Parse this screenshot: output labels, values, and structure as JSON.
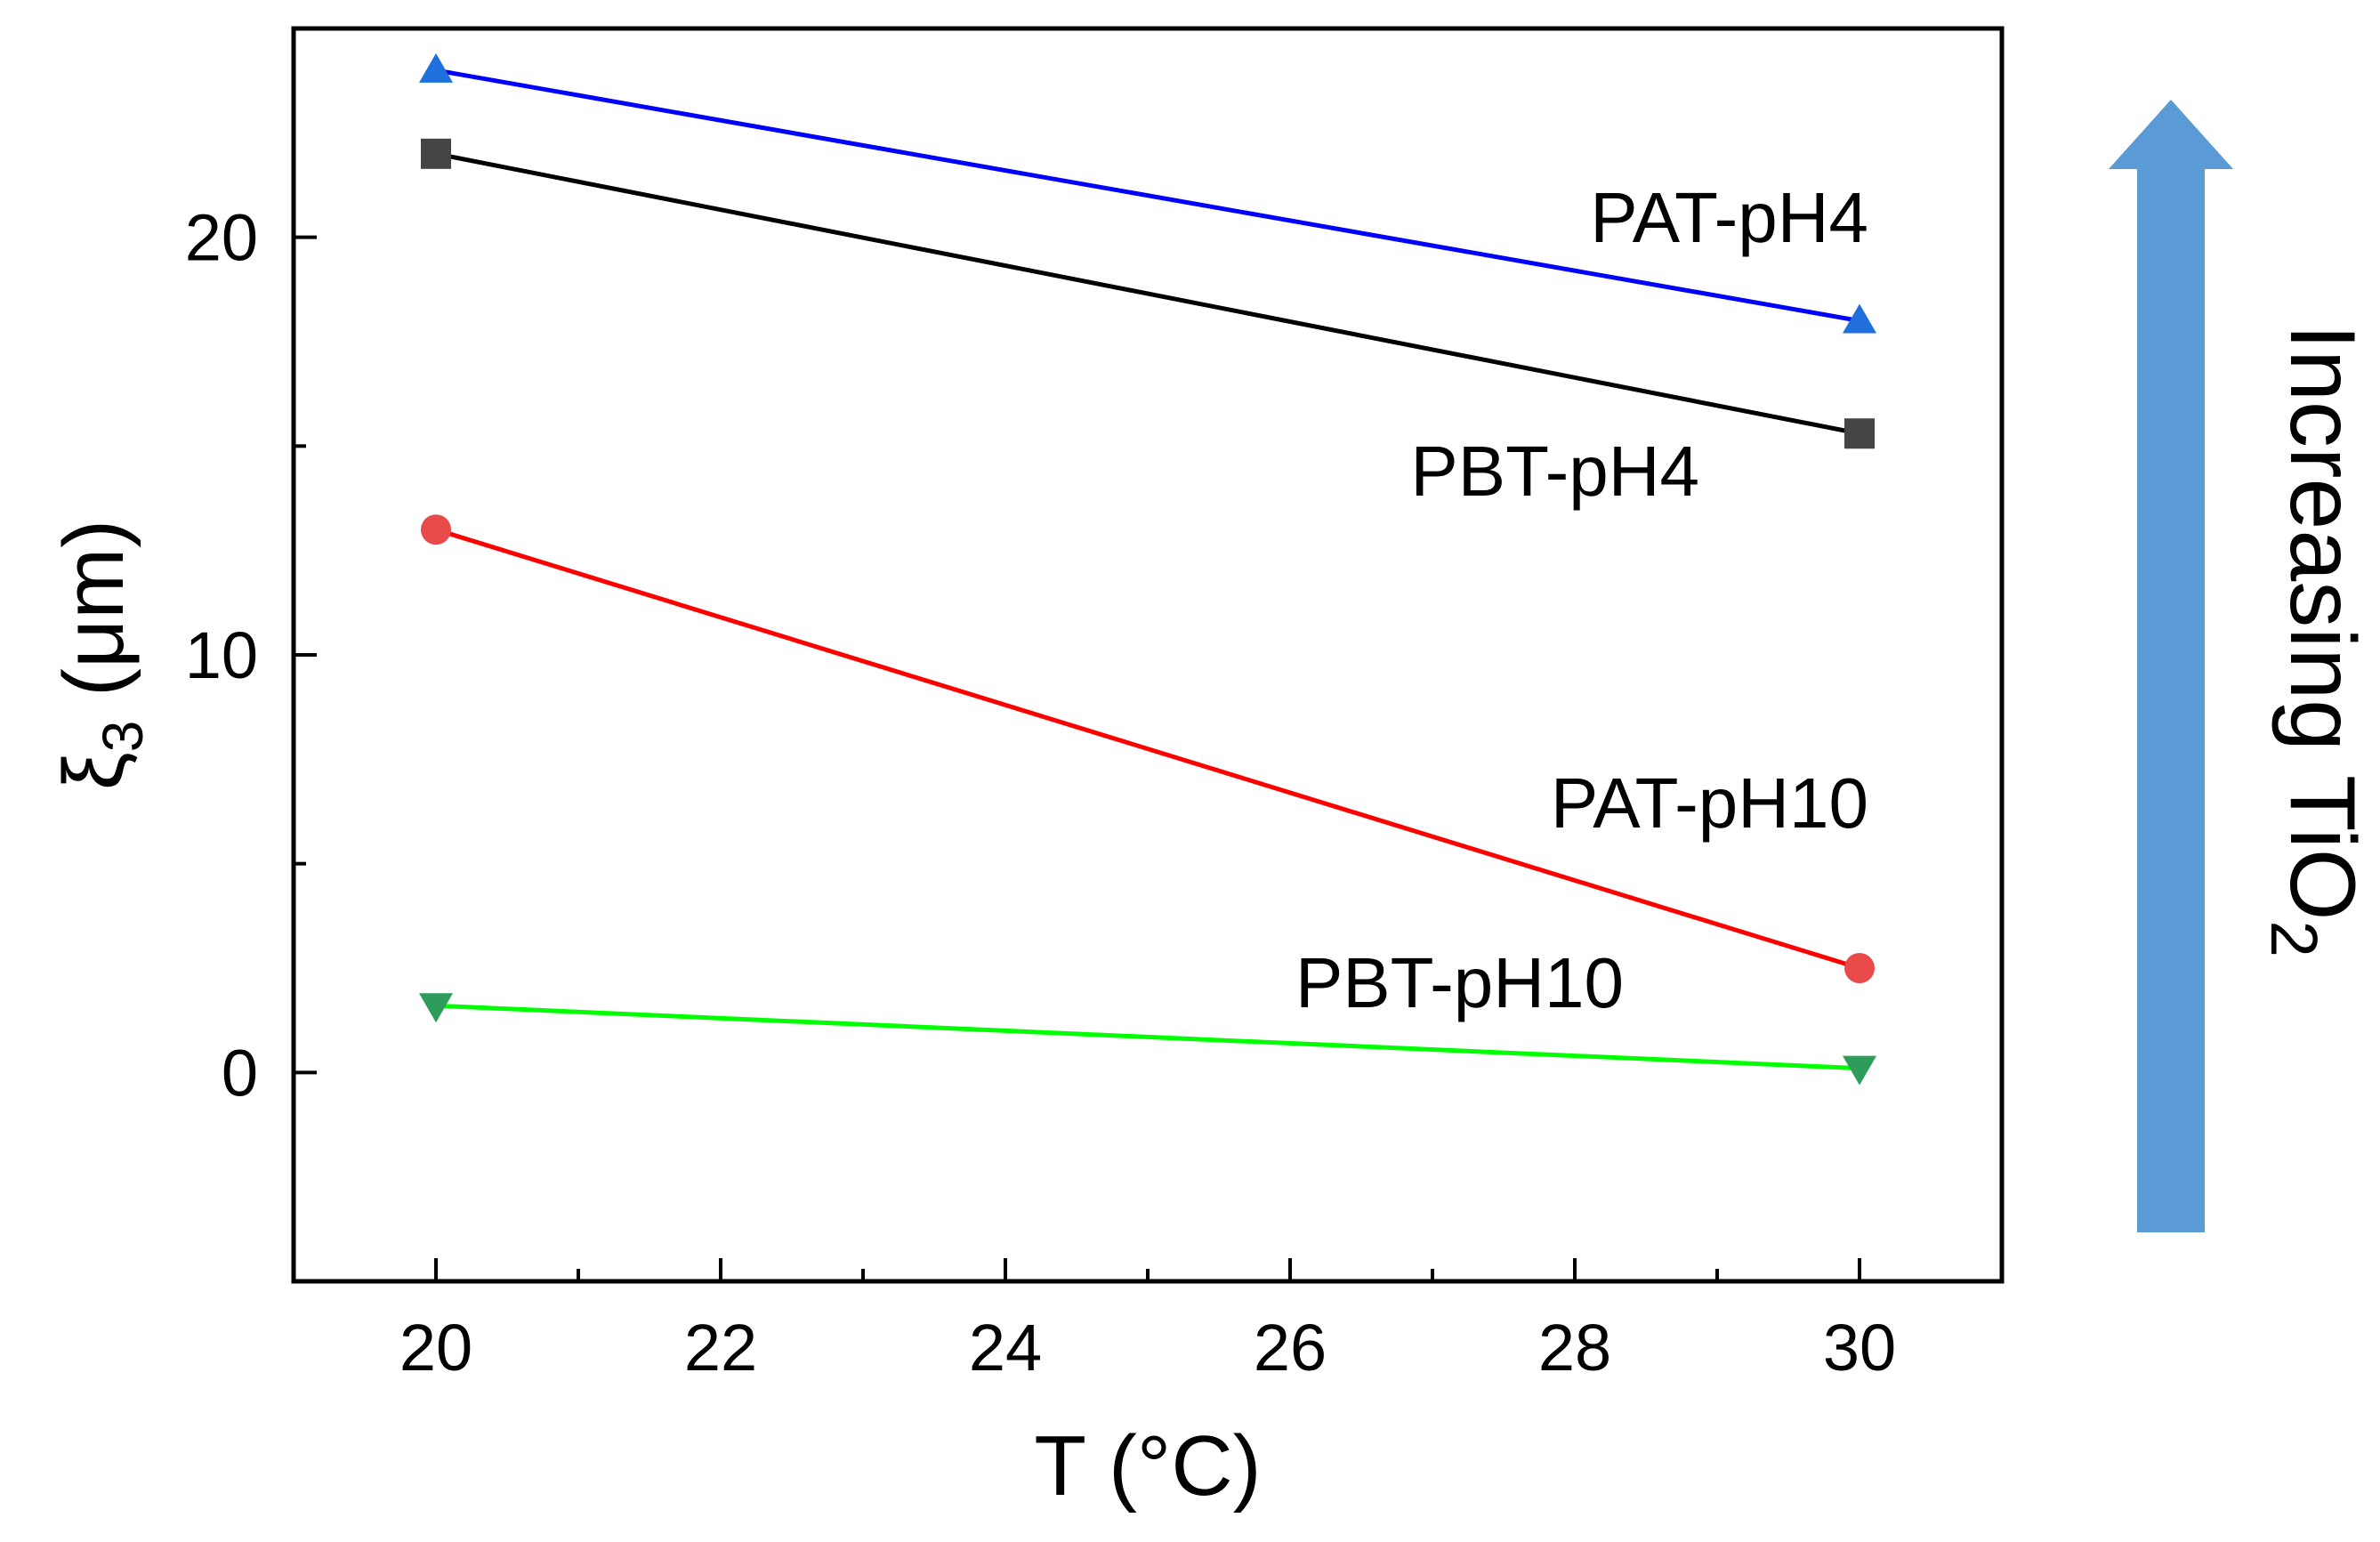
{
  "chart_data": {
    "type": "line",
    "title": "",
    "xlabel": "T (°C)",
    "ylabel": {
      "main": "ξ",
      "sub": "3",
      "unit": " (μm)"
    },
    "xlim": [
      19,
      31
    ],
    "ylim": [
      -5,
      25
    ],
    "xticks": [
      20,
      22,
      24,
      26,
      28,
      30
    ],
    "yticks": [
      0,
      10,
      20
    ],
    "grid": false,
    "legend": "none",
    "series": [
      {
        "name": "PAT-pH4",
        "x": [
          20,
          30
        ],
        "y": [
          24.0,
          18.0
        ],
        "line_color": "#0000ff",
        "marker_color": "#1f6fdc",
        "marker": "triangle-up"
      },
      {
        "name": "PBT-pH4",
        "x": [
          20,
          30
        ],
        "y": [
          22.0,
          15.3
        ],
        "line_color": "#000000",
        "marker_color": "#444444",
        "marker": "square"
      },
      {
        "name": "PAT-pH10",
        "x": [
          20,
          30
        ],
        "y": [
          13.0,
          2.5
        ],
        "line_color": "#ff0000",
        "marker_color": "#e84a4a",
        "marker": "circle"
      },
      {
        "name": "PBT-pH10",
        "x": [
          20,
          30
        ],
        "y": [
          1.6,
          0.1
        ],
        "line_color": "#00ff00",
        "marker_color": "#2e9c5a",
        "marker": "triangle-down"
      }
    ],
    "annotation": {
      "text_main": "Increasing TiO",
      "text_sub": "2",
      "arrow_color": "#5b9bd5",
      "direction": "up"
    }
  }
}
